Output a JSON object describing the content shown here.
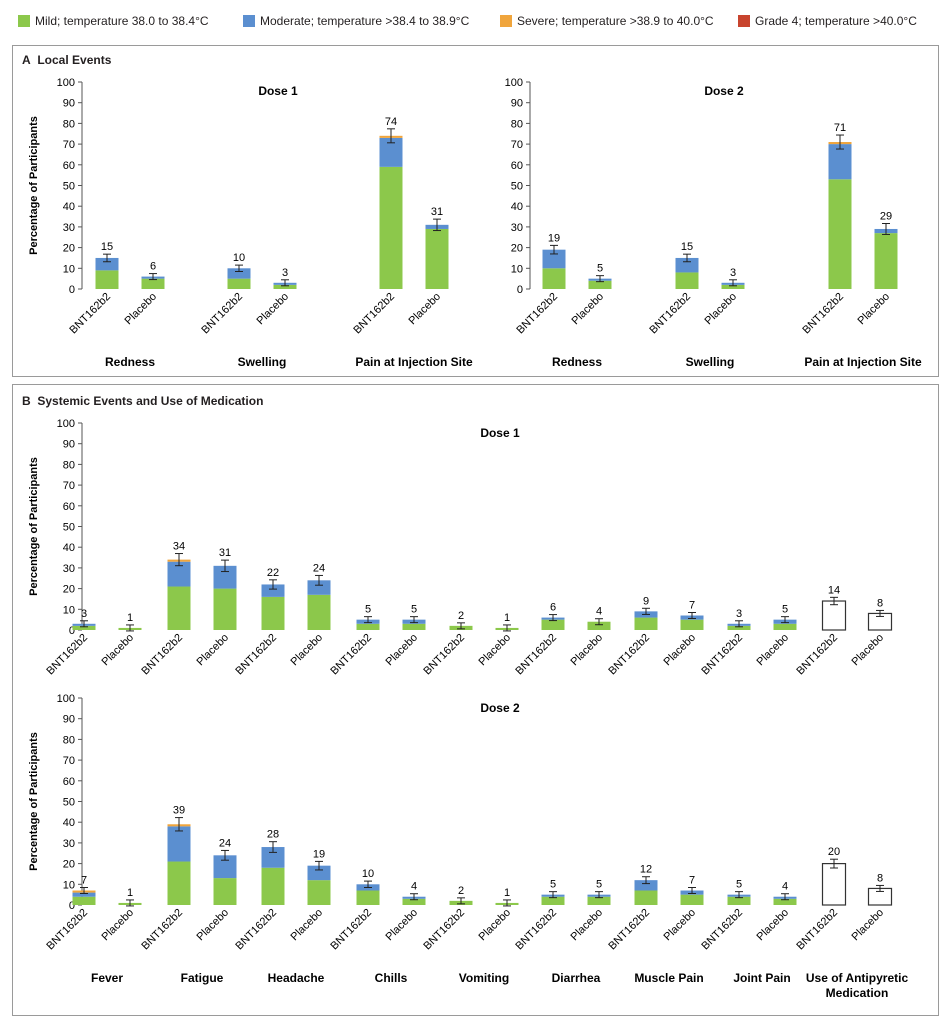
{
  "legend": {
    "items": [
      {
        "label": "Mild; temperature 38.0 to 38.4°C",
        "color": "#8cc84b"
      },
      {
        "label": "Moderate; temperature >38.4 to 38.9°C",
        "color": "#5b8fd0"
      },
      {
        "label": "Severe; temperature >38.9 to 40.0°C",
        "color": "#f0a53c"
      },
      {
        "label": "Grade 4; temperature >40.0°C",
        "color": "#c8442e"
      }
    ]
  },
  "panel_a": {
    "letter": "A",
    "title": "Local Events"
  },
  "panel_b": {
    "letter": "B",
    "title": "Systemic Events and Use of Medication"
  },
  "ylabel": "Percentage of Participants",
  "chart_data": [
    {
      "type": "bar",
      "panel": "A",
      "title": "Dose 1",
      "ylabel": "Percentage of Participants",
      "ylim": [
        0,
        100
      ],
      "yticks": [
        0,
        10,
        20,
        30,
        40,
        50,
        60,
        70,
        80,
        90,
        100
      ],
      "groups": [
        "Redness",
        "Swelling",
        "Pain at Injection Site"
      ],
      "bar_labels": [
        "BNT162b2",
        "Placebo"
      ],
      "series": [
        {
          "name": "Mild; temperature 38.0 to 38.4°C",
          "values": [
            [
              9,
              5
            ],
            [
              5,
              2
            ],
            [
              59,
              29
            ]
          ]
        },
        {
          "name": "Moderate; temperature >38.4 to 38.9°C",
          "values": [
            [
              6,
              1
            ],
            [
              5,
              1
            ],
            [
              14,
              2
            ]
          ]
        },
        {
          "name": "Severe; temperature >38.9 to 40.0°C",
          "values": [
            [
              0,
              0
            ],
            [
              0,
              0
            ],
            [
              1,
              0
            ]
          ]
        }
      ],
      "totals": [
        [
          15,
          6
        ],
        [
          10,
          3
        ],
        [
          74,
          31
        ]
      ]
    },
    {
      "type": "bar",
      "panel": "A",
      "title": "Dose 2",
      "ylabel": "",
      "ylim": [
        0,
        100
      ],
      "yticks": [
        0,
        10,
        20,
        30,
        40,
        50,
        60,
        70,
        80,
        90,
        100
      ],
      "groups": [
        "Redness",
        "Swelling",
        "Pain at Injection Site"
      ],
      "bar_labels": [
        "BNT162b2",
        "Placebo"
      ],
      "series": [
        {
          "name": "Mild; temperature 38.0 to 38.4°C",
          "values": [
            [
              10,
              4
            ],
            [
              8,
              2
            ],
            [
              53,
              27
            ]
          ]
        },
        {
          "name": "Moderate; temperature >38.4 to 38.9°C",
          "values": [
            [
              9,
              1
            ],
            [
              7,
              1
            ],
            [
              17,
              2
            ]
          ]
        },
        {
          "name": "Severe; temperature >38.9 to 40.0°C",
          "values": [
            [
              0,
              0
            ],
            [
              0,
              0
            ],
            [
              1,
              0
            ]
          ]
        }
      ],
      "totals": [
        [
          19,
          5
        ],
        [
          15,
          3
        ],
        [
          71,
          29
        ]
      ]
    },
    {
      "type": "bar",
      "panel": "B",
      "title": "Dose 1",
      "ylabel": "Percentage of Participants",
      "ylim": [
        0,
        100
      ],
      "yticks": [
        0,
        10,
        20,
        30,
        40,
        50,
        60,
        70,
        80,
        90,
        100
      ],
      "groups": [
        "Fever",
        "Fatigue",
        "Headache",
        "Chills",
        "Vomiting",
        "Diarrhea",
        "Muscle Pain",
        "Joint Pain",
        "Use of Antipyretic Medication"
      ],
      "bar_labels": [
        "BNT162b2",
        "Placebo"
      ],
      "series": [
        {
          "name": "Mild; temperature 38.0 to 38.4°C",
          "values": [
            [
              2,
              1
            ],
            [
              21,
              20
            ],
            [
              16,
              17
            ],
            [
              3,
              3
            ],
            [
              2,
              1
            ],
            [
              5,
              4
            ],
            [
              6,
              5
            ],
            [
              2,
              3
            ],
            [
              0,
              0
            ]
          ]
        },
        {
          "name": "Moderate; temperature >38.4 to 38.9°C",
          "values": [
            [
              1,
              0
            ],
            [
              12,
              11
            ],
            [
              6,
              7
            ],
            [
              2,
              2
            ],
            [
              0,
              0
            ],
            [
              1,
              0
            ],
            [
              3,
              2
            ],
            [
              1,
              2
            ],
            [
              0,
              0
            ]
          ]
        },
        {
          "name": "Severe; temperature >38.9 to 40.0°C",
          "values": [
            [
              0,
              0
            ],
            [
              1,
              0
            ],
            [
              0,
              0
            ],
            [
              0,
              0
            ],
            [
              0,
              0
            ],
            [
              0,
              0
            ],
            [
              0,
              0
            ],
            [
              0,
              0
            ],
            [
              0,
              0
            ]
          ]
        }
      ],
      "medication": [
        14,
        8
      ],
      "totals": [
        [
          3,
          1
        ],
        [
          34,
          31
        ],
        [
          22,
          24
        ],
        [
          5,
          5
        ],
        [
          2,
          1
        ],
        [
          6,
          4
        ],
        [
          9,
          7
        ],
        [
          3,
          5
        ],
        [
          14,
          8
        ]
      ]
    },
    {
      "type": "bar",
      "panel": "B",
      "title": "Dose 2",
      "ylabel": "Percentage of Participants",
      "ylim": [
        0,
        100
      ],
      "yticks": [
        0,
        10,
        20,
        30,
        40,
        50,
        60,
        70,
        80,
        90,
        100
      ],
      "groups": [
        "Fever",
        "Fatigue",
        "Headache",
        "Chills",
        "Vomiting",
        "Diarrhea",
        "Muscle Pain",
        "Joint Pain",
        "Use of Antipyretic Medication"
      ],
      "bar_labels": [
        "BNT162b2",
        "Placebo"
      ],
      "series": [
        {
          "name": "Mild; temperature 38.0 to 38.4°C",
          "values": [
            [
              4,
              1
            ],
            [
              21,
              13
            ],
            [
              18,
              12
            ],
            [
              7,
              3
            ],
            [
              2,
              1
            ],
            [
              4,
              4
            ],
            [
              7,
              5
            ],
            [
              4,
              3
            ],
            [
              0,
              0
            ]
          ]
        },
        {
          "name": "Moderate; temperature >38.4 to 38.9°C",
          "values": [
            [
              2,
              0
            ],
            [
              17,
              11
            ],
            [
              10,
              7
            ],
            [
              3,
              1
            ],
            [
              0,
              0
            ],
            [
              1,
              1
            ],
            [
              5,
              2
            ],
            [
              1,
              1
            ],
            [
              0,
              0
            ]
          ]
        },
        {
          "name": "Severe; temperature >38.9 to 40.0°C",
          "values": [
            [
              1,
              0
            ],
            [
              1,
              0
            ],
            [
              0,
              0
            ],
            [
              0,
              0
            ],
            [
              0,
              0
            ],
            [
              0,
              0
            ],
            [
              0,
              0
            ],
            [
              0,
              0
            ],
            [
              0,
              0
            ]
          ]
        }
      ],
      "medication": [
        20,
        8
      ],
      "totals": [
        [
          7,
          1
        ],
        [
          39,
          24
        ],
        [
          28,
          19
        ],
        [
          10,
          4
        ],
        [
          2,
          1
        ],
        [
          5,
          5
        ],
        [
          12,
          7
        ],
        [
          5,
          4
        ],
        [
          20,
          8
        ]
      ]
    }
  ]
}
